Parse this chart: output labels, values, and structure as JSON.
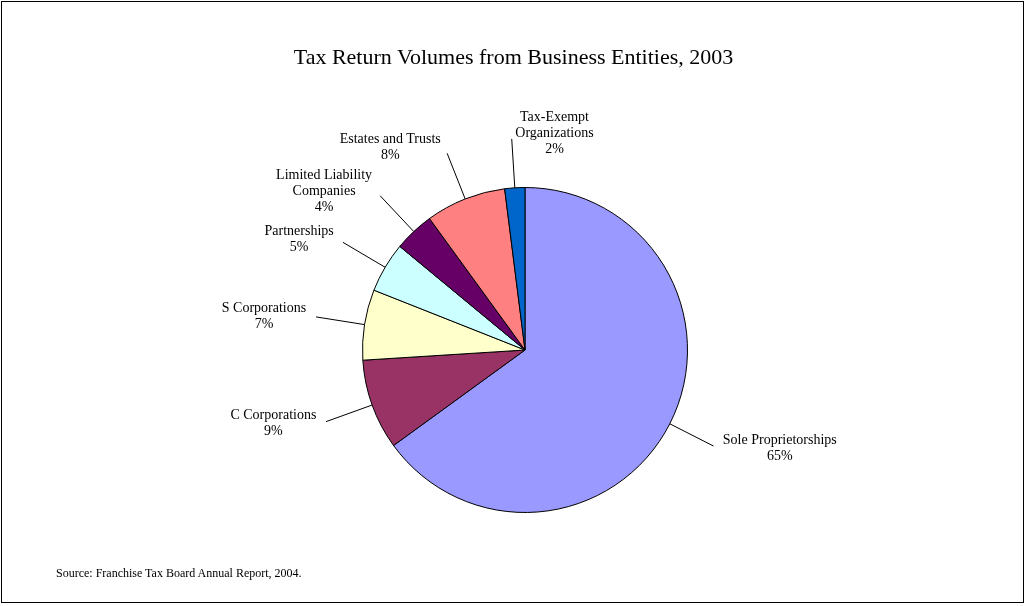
{
  "chart_data": {
    "type": "pie",
    "title": "Tax Return Volumes from Business Entities, 2003",
    "categories": [
      "Sole Proprietorships",
      "C Corporations",
      "S Corporations",
      "Partnerships",
      "Limited Liability Companies",
      "Estates and Trusts",
      "Tax-Exempt Organizations"
    ],
    "values": [
      65,
      9,
      7,
      5,
      4,
      8,
      2
    ],
    "colors": [
      "#9999ff",
      "#993366",
      "#ffffcc",
      "#ccffff",
      "#660066",
      "#ff8080",
      "#0066cc"
    ],
    "value_labels": [
      "65%",
      "9%",
      "7%",
      "5%",
      "4%",
      "8%",
      "2%"
    ],
    "legend": false,
    "annotations": [
      "Source: Franchise Tax Board Annual Report, 2004."
    ]
  }
}
